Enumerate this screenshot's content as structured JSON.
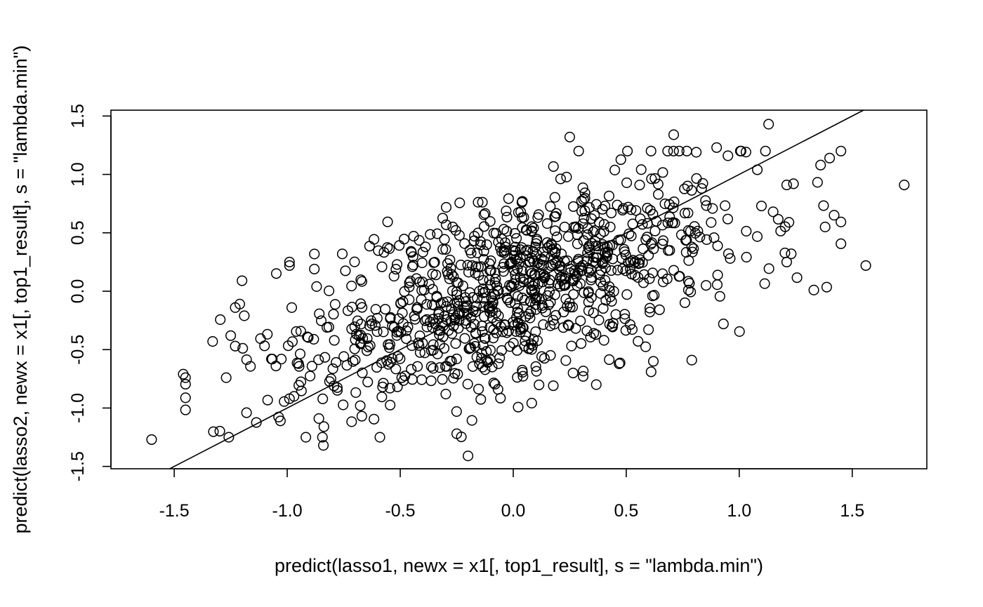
{
  "chart_data": {
    "type": "scatter",
    "title": "",
    "xlabel": "predict(lasso1, newx = x1[, top1_result], s = \"lambda.min\")",
    "ylabel": "predict(lasso2, newx = x1[, top1_result], s = \"lambda.min\")",
    "xlim": [
      -1.78,
      1.83
    ],
    "ylim": [
      -1.52,
      1.55
    ],
    "xticks": [
      -1.5,
      -1.0,
      -0.5,
      0.0,
      0.5,
      1.0,
      1.5
    ],
    "xtick_labels": [
      "-1.5",
      "-1.0",
      "-0.5",
      "0.0",
      "0.5",
      "1.0",
      "1.5"
    ],
    "yticks": [
      -1.5,
      -1.0,
      -0.5,
      0.0,
      0.5,
      1.0,
      1.5
    ],
    "ytick_labels": [
      "-1.5",
      "-1.0",
      "-0.5",
      "0.0",
      "0.5",
      "1.0",
      "1.5"
    ],
    "grid": false,
    "legend": "none",
    "marker": "open-circle",
    "marker_color": "#000000",
    "reference_line": {
      "type": "identity",
      "intercept": 0,
      "slope": 1,
      "color": "#000000"
    },
    "highlighted_points": [
      {
        "x": -1.6,
        "y": -1.27
      },
      {
        "x": -1.46,
        "y": -0.71
      },
      {
        "x": -1.45,
        "y": -0.74
      },
      {
        "x": -1.33,
        "y": -0.43
      },
      {
        "x": -1.27,
        "y": -0.74
      },
      {
        "x": -1.25,
        "y": -0.38
      },
      {
        "x": -1.23,
        "y": -0.47
      },
      {
        "x": -1.23,
        "y": -0.14
      },
      {
        "x": -1.21,
        "y": -0.11
      },
      {
        "x": -1.2,
        "y": 0.09
      },
      {
        "x": -1.19,
        "y": -0.21
      },
      {
        "x": -1.18,
        "y": -1.04
      },
      {
        "x": -1.07,
        "y": -0.58
      },
      {
        "x": -1.05,
        "y": -0.64
      },
      {
        "x": -0.99,
        "y": -0.92
      },
      {
        "x": -0.99,
        "y": 0.25
      },
      {
        "x": -0.99,
        "y": 0.22
      },
      {
        "x": -0.98,
        "y": -0.14
      },
      {
        "x": -0.97,
        "y": -0.9
      },
      {
        "x": -0.95,
        "y": -0.62
      },
      {
        "x": -0.88,
        "y": 0.19
      },
      {
        "x": -0.87,
        "y": 0.04
      },
      {
        "x": -0.86,
        "y": -1.09
      },
      {
        "x": -0.84,
        "y": -1.32
      },
      {
        "x": -0.2,
        "y": -1.41
      },
      {
        "x": 0.25,
        "y": 1.32
      },
      {
        "x": 0.71,
        "y": 1.34
      },
      {
        "x": 0.81,
        "y": 1.19
      },
      {
        "x": 0.9,
        "y": 1.23
      },
      {
        "x": 0.95,
        "y": 1.16
      },
      {
        "x": 1.13,
        "y": 1.43
      },
      {
        "x": 1.08,
        "y": 1.04
      },
      {
        "x": 1.15,
        "y": 0.68
      },
      {
        "x": 1.21,
        "y": 0.91
      },
      {
        "x": 1.24,
        "y": 0.92
      },
      {
        "x": 1.22,
        "y": 0.59
      },
      {
        "x": 1.21,
        "y": 0.25
      },
      {
        "x": 1.23,
        "y": 0.32
      },
      {
        "x": 1.33,
        "y": 0.01
      },
      {
        "x": 1.36,
        "y": 1.08
      },
      {
        "x": 1.38,
        "y": 0.55
      },
      {
        "x": 1.4,
        "y": 1.14
      },
      {
        "x": 1.56,
        "y": 0.22
      },
      {
        "x": 1.73,
        "y": 0.91
      },
      {
        "x": 0.93,
        "y": -0.28
      },
      {
        "x": 0.79,
        "y": -0.59
      },
      {
        "x": 0.61,
        "y": -0.69
      },
      {
        "x": 0.62,
        "y": -0.6
      },
      {
        "x": -0.25,
        "y": -1.22
      },
      {
        "x": -0.59,
        "y": -1.25
      },
      {
        "x": -0.67,
        "y": -1.07
      }
    ],
    "n_points": 1000,
    "x_mean": 0.0,
    "x_sd": 0.5,
    "y_on_x_slope": 0.6,
    "y_resid_sd": 0.38,
    "note_omitted": ""
  }
}
